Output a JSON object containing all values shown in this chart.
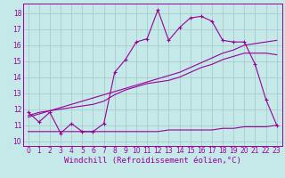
{
  "background_color": "#c5e8e8",
  "grid_color": "#aacccc",
  "line_color": "#990099",
  "xlabel": "Windchill (Refroidissement éolien,°C)",
  "xlabel_fontsize": 6.5,
  "tick_fontsize": 5.5,
  "xlim": [
    -0.5,
    23.5
  ],
  "ylim": [
    9.7,
    18.6
  ],
  "xticks": [
    0,
    1,
    2,
    3,
    4,
    5,
    6,
    7,
    8,
    9,
    10,
    11,
    12,
    13,
    14,
    15,
    16,
    17,
    18,
    19,
    20,
    21,
    22,
    23
  ],
  "yticks": [
    10,
    11,
    12,
    13,
    14,
    15,
    16,
    17,
    18
  ],
  "line1_x": [
    0,
    1,
    2,
    3,
    4,
    5,
    6,
    7,
    8,
    9,
    10,
    11,
    12,
    13,
    14,
    15,
    16,
    17,
    18,
    19,
    20,
    21,
    22,
    23
  ],
  "line1_y": [
    11.8,
    11.2,
    11.8,
    10.5,
    11.1,
    10.6,
    10.6,
    11.1,
    14.3,
    15.1,
    16.2,
    16.4,
    18.2,
    16.3,
    17.1,
    17.7,
    17.8,
    17.5,
    16.3,
    16.2,
    16.2,
    14.8,
    12.6,
    11.0
  ],
  "line2_x": [
    0,
    1,
    2,
    3,
    4,
    5,
    6,
    7,
    8,
    9,
    10,
    11,
    12,
    13,
    14,
    15,
    16,
    17,
    18,
    19,
    20,
    21,
    22,
    23
  ],
  "line2_y": [
    11.5,
    11.7,
    11.9,
    12.1,
    12.3,
    12.5,
    12.7,
    12.9,
    13.1,
    13.3,
    13.5,
    13.7,
    13.9,
    14.1,
    14.3,
    14.6,
    14.9,
    15.2,
    15.5,
    15.7,
    16.0,
    16.1,
    16.2,
    16.3
  ],
  "line3_x": [
    0,
    1,
    2,
    3,
    4,
    5,
    6,
    7,
    8,
    9,
    10,
    11,
    12,
    13,
    14,
    15,
    16,
    17,
    18,
    19,
    20,
    21,
    22,
    23
  ],
  "line3_y": [
    10.6,
    10.6,
    10.6,
    10.6,
    10.6,
    10.6,
    10.6,
    10.6,
    10.6,
    10.6,
    10.6,
    10.6,
    10.6,
    10.7,
    10.7,
    10.7,
    10.7,
    10.7,
    10.8,
    10.8,
    10.9,
    10.9,
    10.9,
    11.0
  ],
  "line4_x": [
    0,
    1,
    2,
    3,
    4,
    5,
    6,
    7,
    8,
    9,
    10,
    11,
    12,
    13,
    14,
    15,
    16,
    17,
    18,
    19,
    20,
    21,
    22,
    23
  ],
  "line4_y": [
    11.6,
    11.8,
    11.9,
    12.0,
    12.1,
    12.2,
    12.3,
    12.5,
    12.9,
    13.2,
    13.4,
    13.6,
    13.7,
    13.8,
    14.0,
    14.3,
    14.6,
    14.8,
    15.1,
    15.3,
    15.5,
    15.5,
    15.5,
    15.4
  ]
}
